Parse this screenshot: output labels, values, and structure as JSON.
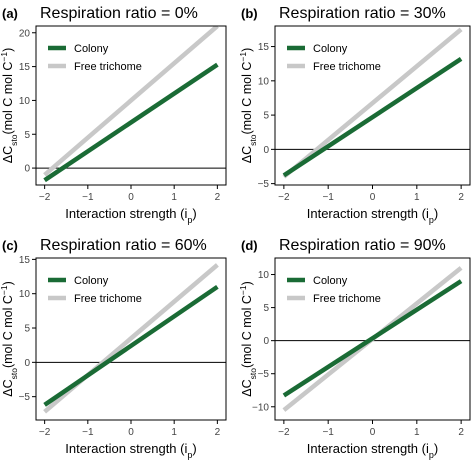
{
  "colors": {
    "colony": "#1a6b35",
    "free_trichome": "#c8c8c8",
    "zero_line": "#000000",
    "frame": "#000000"
  },
  "chart_data": [
    {
      "type": "line",
      "panel_label": "(a)",
      "title": "Respiration ratio = 0%",
      "xlabel": "Interaction strength (i",
      "xlabel_sub": "p",
      "xlabel_close": ")",
      "ylabel_prefix": "ΔC",
      "ylabel_sub": "sto",
      "ylabel_unit": "(mol C mol C",
      "ylabel_sup": "−1",
      "ylabel_close": ")",
      "xlim": [
        -2.2,
        2.2
      ],
      "ylim": [
        -2.5,
        21
      ],
      "x_ticks": [
        -2,
        -1,
        0,
        1,
        2
      ],
      "y_ticks": [
        0,
        5,
        10,
        15,
        20
      ],
      "x_tick_labels": [
        "−2",
        "−1",
        "0",
        "1",
        "2"
      ],
      "y_tick_labels": [
        "0",
        "5",
        "10",
        "15",
        "20"
      ],
      "zero_line": true,
      "legend": "top-left",
      "series": [
        {
          "name": "Colony",
          "color_key": "colony",
          "x": [
            -2,
            2
          ],
          "y": [
            -1.8,
            15.3
          ]
        },
        {
          "name": "Free trichome",
          "color_key": "free_trichome",
          "x": [
            -2,
            2
          ],
          "y": [
            -1.0,
            21.0
          ]
        }
      ]
    },
    {
      "type": "line",
      "panel_label": "(b)",
      "title": "Respiration ratio = 30%",
      "xlabel": "Interaction strength (i",
      "xlabel_sub": "p",
      "xlabel_close": ")",
      "ylabel_prefix": "ΔC",
      "ylabel_sub": "sto",
      "ylabel_unit": "(mol C mol C",
      "ylabel_sup": "−1",
      "ylabel_close": ")",
      "xlim": [
        -2.2,
        2.2
      ],
      "ylim": [
        -5.2,
        18
      ],
      "x_ticks": [
        -2,
        -1,
        0,
        1,
        2
      ],
      "y_ticks": [
        -5,
        0,
        5,
        10,
        15
      ],
      "x_tick_labels": [
        "−2",
        "−1",
        "0",
        "1",
        "2"
      ],
      "y_tick_labels": [
        "−5",
        "0",
        "5",
        "10",
        "15"
      ],
      "zero_line": true,
      "legend": "top-left",
      "series": [
        {
          "name": "Colony",
          "color_key": "colony",
          "x": [
            -2,
            2
          ],
          "y": [
            -3.8,
            13.2
          ]
        },
        {
          "name": "Free trichome",
          "color_key": "free_trichome",
          "x": [
            -2,
            2
          ],
          "y": [
            -4.0,
            17.5
          ]
        }
      ]
    },
    {
      "type": "line",
      "panel_label": "(c)",
      "title": "Respiration ratio = 60%",
      "xlabel": "Interaction strength (i",
      "xlabel_sub": "p",
      "xlabel_close": ")",
      "ylabel_prefix": "ΔC",
      "ylabel_sub": "sto",
      "ylabel_unit": "(mol C mol C",
      "ylabel_sup": "−1",
      "ylabel_close": ")",
      "xlim": [
        -2.2,
        2.2
      ],
      "ylim": [
        -8.4,
        15.2
      ],
      "x_ticks": [
        -2,
        -1,
        0,
        1,
        2
      ],
      "y_ticks": [
        -5,
        0,
        5,
        10,
        15
      ],
      "x_tick_labels": [
        "−2",
        "−1",
        "0",
        "1",
        "2"
      ],
      "y_tick_labels": [
        "−5",
        "0",
        "5",
        "10",
        "15"
      ],
      "zero_line": true,
      "legend": "top-left",
      "series": [
        {
          "name": "Colony",
          "color_key": "colony",
          "x": [
            -2,
            2
          ],
          "y": [
            -6.2,
            11.0
          ]
        },
        {
          "name": "Free trichome",
          "color_key": "free_trichome",
          "x": [
            -2,
            2
          ],
          "y": [
            -7.2,
            14.2
          ]
        }
      ]
    },
    {
      "type": "line",
      "panel_label": "(d)",
      "title": "Respiration ratio = 90%",
      "xlabel": "Interaction strength (i",
      "xlabel_sub": "p",
      "xlabel_close": ")",
      "ylabel_prefix": "ΔC",
      "ylabel_sub": "sto",
      "ylabel_unit": "(mol C mol C",
      "ylabel_sup": "−1",
      "ylabel_close": ")",
      "xlim": [
        -2.2,
        2.2
      ],
      "ylim": [
        -12,
        12.5
      ],
      "x_ticks": [
        -2,
        -1,
        0,
        1,
        2
      ],
      "y_ticks": [
        -10,
        -5,
        0,
        5,
        10
      ],
      "x_tick_labels": [
        "−2",
        "−1",
        "0",
        "1",
        "2"
      ],
      "y_tick_labels": [
        "−10",
        "−5",
        "0",
        "5",
        "10"
      ],
      "zero_line": true,
      "legend": "top-left",
      "series": [
        {
          "name": "Colony",
          "color_key": "colony",
          "x": [
            -2,
            2
          ],
          "y": [
            -8.3,
            9.0
          ]
        },
        {
          "name": "Free trichome",
          "color_key": "free_trichome",
          "x": [
            -2,
            2
          ],
          "y": [
            -10.5,
            11.0
          ]
        }
      ]
    }
  ]
}
